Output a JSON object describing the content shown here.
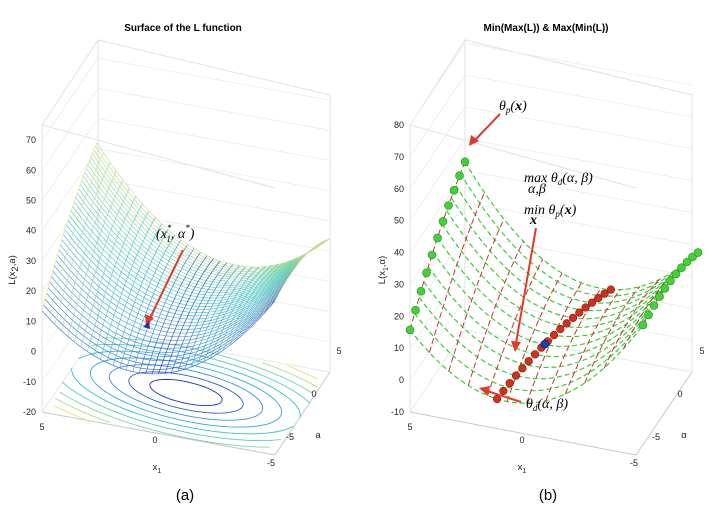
{
  "chart_data": [
    {
      "type": "surface",
      "panel_caption": "(a)",
      "title": "Surface of the L function",
      "xlabel": "x",
      "xlabel_sub": "1",
      "ylabel": "a",
      "zlabel": "L(x",
      "zlabel_sub": "2",
      "zlabel_tail": ",a)",
      "x_ticks": [
        "5",
        "0",
        "-5"
      ],
      "y_ticks": [
        "5",
        "0",
        "-5"
      ],
      "z_ticks": [
        "-20",
        "-10",
        "0",
        "10",
        "20",
        "30",
        "40",
        "50",
        "60",
        "70"
      ],
      "xlim": [
        -5,
        5
      ],
      "ylim": [
        -5,
        5
      ],
      "zlim": [
        -20,
        75
      ],
      "colormap": [
        "#1d2fd6",
        "#3f8fd8",
        "#35c1c9",
        "#7fd6a2",
        "#e9de7c"
      ],
      "annotations": [
        {
          "text": "(x",
          "sup": "*",
          "sub": "1",
          "tail": ", α",
          "tail_sup": "*",
          "close": ")",
          "point": [
            0,
            0,
            10
          ],
          "color": "#e03a2b"
        }
      ],
      "grid": true
    },
    {
      "type": "surface",
      "panel_caption": "(b)",
      "title": "Min(Max(L)) & Max(Min(L))",
      "xlabel": "x",
      "xlabel_sub": "1",
      "ylabel": "α",
      "zlabel": "L(x",
      "zlabel_sub": "1",
      "zlabel_tail": ",α)",
      "x_ticks": [
        "5",
        "0",
        "-5"
      ],
      "y_ticks": [
        "5",
        "0",
        "-5"
      ],
      "z_ticks": [
        "-10",
        "0",
        "10",
        "20",
        "30",
        "40",
        "50",
        "60",
        "70",
        "80"
      ],
      "xlim": [
        -5,
        5
      ],
      "ylim": [
        -5,
        5
      ],
      "zlim": [
        -10,
        80
      ],
      "mesh_colors": {
        "alpha_lines": "#2ec72a",
        "x_lines": "#c0392b"
      },
      "series": [
        {
          "name": "θp(x)",
          "marker_color": "#43d13a"
        },
        {
          "name": "θd(α,β)",
          "marker_color": "#d0311f"
        },
        {
          "name": "saddle",
          "marker_color": "#1d3fb8"
        }
      ],
      "annotations": [
        {
          "text": "θ",
          "sub": "p",
          "tail": "(",
          "bold": "x",
          "close": ")"
        },
        {
          "text": "max θ",
          "sub": "d",
          "tail": "(α, β)",
          "under": "α,β"
        },
        {
          "text": "min θ",
          "sub": "p",
          "tail": "(",
          "bold": "x",
          "close": ")",
          "under": "x"
        },
        {
          "text": "θ",
          "sub": "d",
          "tail": "(α, β)"
        }
      ],
      "grid": true
    }
  ]
}
